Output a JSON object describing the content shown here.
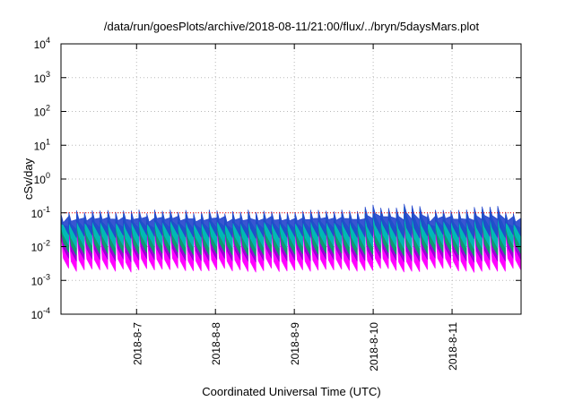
{
  "chart_data": {
    "type": "area",
    "title": "/data/run/goesPlots/archive/2018-08-11/21:00/flux/../bryn/5daysMars.plot",
    "xlabel": "Coordinated Universal Time (UTC)",
    "ylabel": "cSv/day",
    "yscale": "log",
    "ylim": [
      0.0001,
      10000
    ],
    "xlim": [
      "2018-08-06T01:00",
      "2018-08-11T21:00"
    ],
    "x_ticks": [
      "2018-8-7",
      "2018-8-8",
      "2018-8-9",
      "2018-8-10",
      "2018-8-11"
    ],
    "y_ticks": [
      {
        "base": "10",
        "exp": "-4",
        "value": 0.0001
      },
      {
        "base": "10",
        "exp": "-3",
        "value": 0.001
      },
      {
        "base": "10",
        "exp": "-2",
        "value": 0.01
      },
      {
        "base": "10",
        "exp": "-1",
        "value": 0.1
      },
      {
        "base": "10",
        "exp": "0",
        "value": 1
      },
      {
        "base": "10",
        "exp": "1",
        "value": 10
      },
      {
        "base": "10",
        "exp": "2",
        "value": 100
      },
      {
        "base": "10",
        "exp": "3",
        "value": 1000
      },
      {
        "base": "10",
        "exp": "4",
        "value": 10000
      }
    ],
    "grid": true,
    "reference_line": {
      "value": 0.1,
      "color": "#ff0000",
      "style": "dotted"
    },
    "oscillation": {
      "cycles": 59,
      "peak": 0.1,
      "trough": 0.003
    },
    "band_colors": [
      "#ff00ff",
      "#9400d3",
      "#00aa66",
      "#00bbbb",
      "#2244cc"
    ],
    "series": [
      {
        "color": "#ff00ff",
        "peak": 0.06,
        "trough": 0.002
      },
      {
        "color": "#9400d3",
        "peak": 0.07,
        "trough": 0.004
      },
      {
        "color": "#00aa66",
        "peak": 0.08,
        "trough": 0.006
      },
      {
        "color": "#00bbbb",
        "peak": 0.09,
        "trough": 0.01
      },
      {
        "color": "#2244cc",
        "peak": 0.11,
        "trough": 0.02
      }
    ]
  }
}
